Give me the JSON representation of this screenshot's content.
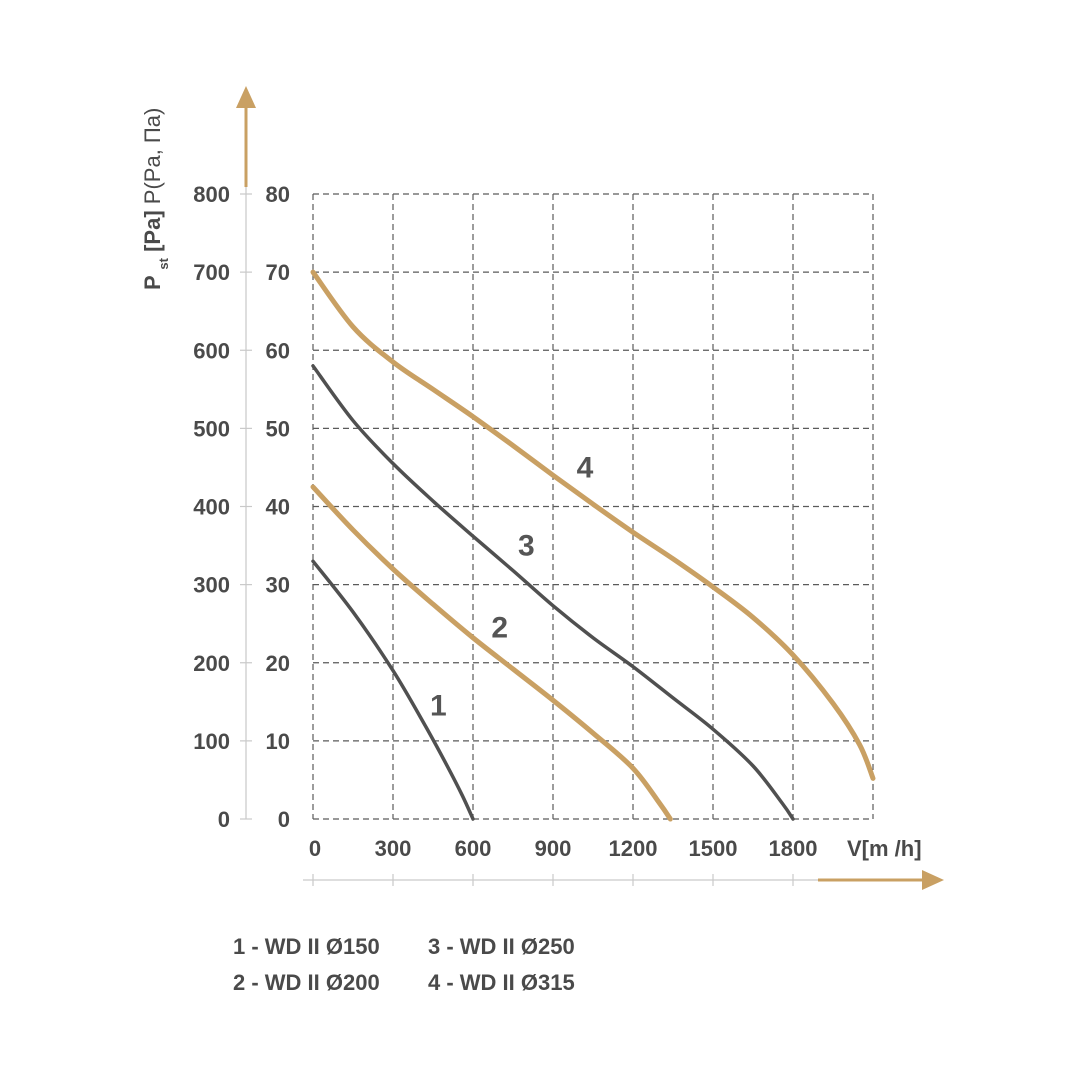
{
  "chart_data": {
    "type": "line",
    "xlabel": "V[m /h]",
    "ylabel_main": "P",
    "ylabel_sub": "st",
    "ylabel_rest": " [Pa]",
    "ylabel_alt": " P(Pa, Па)",
    "x_ticks": [
      "0",
      "300",
      "600",
      "900",
      "1200",
      "1500",
      "1800"
    ],
    "y_ticks_outer": [
      "0",
      "100",
      "200",
      "300",
      "400",
      "500",
      "600",
      "700",
      "800"
    ],
    "y_ticks_inner": [
      "0",
      "10",
      "20",
      "30",
      "40",
      "50",
      "60",
      "70",
      "80"
    ],
    "xlim": [
      0,
      2100
    ],
    "ylim": [
      0,
      800
    ],
    "grid": true,
    "colors": {
      "gold": "#c9a063",
      "dark": "#505050",
      "grid": "#5a5a5a",
      "axis": "#c9c9c9",
      "text": "#4a4a4a"
    },
    "series": [
      {
        "name": "1",
        "color": "dark",
        "x": [
          0,
          150,
          300,
          420,
          500,
          560,
          600
        ],
        "y": [
          330,
          265,
          190,
          120,
          70,
          30,
          0
        ],
        "label_at": [
          470,
          145
        ]
      },
      {
        "name": "2",
        "color": "gold",
        "x": [
          0,
          150,
          300,
          450,
          600,
          750,
          900,
          1050,
          1200,
          1300,
          1340
        ],
        "y": [
          425,
          370,
          320,
          275,
          232,
          192,
          152,
          110,
          65,
          20,
          0
        ],
        "label_at": [
          700,
          245
        ]
      },
      {
        "name": "3",
        "color": "dark",
        "x": [
          0,
          150,
          300,
          450,
          600,
          750,
          900,
          1050,
          1200,
          1350,
          1500,
          1650,
          1760,
          1800
        ],
        "y": [
          580,
          510,
          455,
          407,
          362,
          318,
          273,
          232,
          195,
          155,
          115,
          68,
          20,
          0
        ],
        "label_at": [
          800,
          350
        ]
      },
      {
        "name": "4",
        "color": "gold",
        "x": [
          0,
          150,
          300,
          450,
          600,
          750,
          900,
          1050,
          1200,
          1350,
          1500,
          1650,
          1800,
          1950,
          2050,
          2100
        ],
        "y": [
          700,
          630,
          585,
          550,
          515,
          478,
          440,
          403,
          367,
          333,
          297,
          258,
          210,
          148,
          95,
          52
        ],
        "label_at": [
          1020,
          450
        ]
      }
    ],
    "legend": [
      "1 - WD II Ø150",
      "3 - WD II Ø250",
      "2 - WD II Ø200",
      "4 - WD II Ø315"
    ]
  }
}
